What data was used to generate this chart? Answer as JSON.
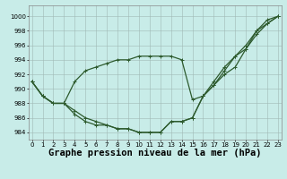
{
  "title": "Graphe pression niveau de la mer (hPa)",
  "background_color": "#c8ece8",
  "grid_color": "#a0b8b4",
  "line_color": "#2d5a2d",
  "xlim": [
    -0.3,
    23.3
  ],
  "ylim": [
    983.0,
    1001.5
  ],
  "yticks": [
    984,
    986,
    988,
    990,
    992,
    994,
    996,
    998,
    1000
  ],
  "xticks": [
    0,
    1,
    2,
    3,
    4,
    5,
    6,
    7,
    8,
    9,
    10,
    11,
    12,
    13,
    14,
    15,
    16,
    17,
    18,
    19,
    20,
    21,
    22,
    23
  ],
  "series_bottom": [
    991.0,
    989.0,
    988.0,
    988.0,
    986.5,
    985.5,
    985.0,
    985.0,
    984.5,
    984.5,
    984.0,
    984.0,
    984.0,
    985.5,
    985.5,
    986.0,
    989.0,
    990.5,
    992.0,
    993.0,
    995.5,
    997.5,
    999.0,
    1000.0
  ],
  "series_mid": [
    991.0,
    989.0,
    988.0,
    988.0,
    987.0,
    986.0,
    985.5,
    985.0,
    984.5,
    984.5,
    984.0,
    984.0,
    984.0,
    985.5,
    985.5,
    986.0,
    989.0,
    990.5,
    992.5,
    994.5,
    996.0,
    998.0,
    999.5,
    1000.0
  ],
  "series_top": [
    991.0,
    989.0,
    988.0,
    988.0,
    991.0,
    992.5,
    993.0,
    993.5,
    994.0,
    994.0,
    994.5,
    994.5,
    994.5,
    994.5,
    994.0,
    988.5,
    989.0,
    991.0,
    993.0,
    994.5,
    995.5,
    998.0,
    999.0,
    1000.0
  ],
  "marker_size": 2.5,
  "line_width": 0.9,
  "title_fontsize": 7.5,
  "tick_fontsize": 5.0,
  "figsize": [
    3.2,
    2.0
  ],
  "dpi": 100
}
